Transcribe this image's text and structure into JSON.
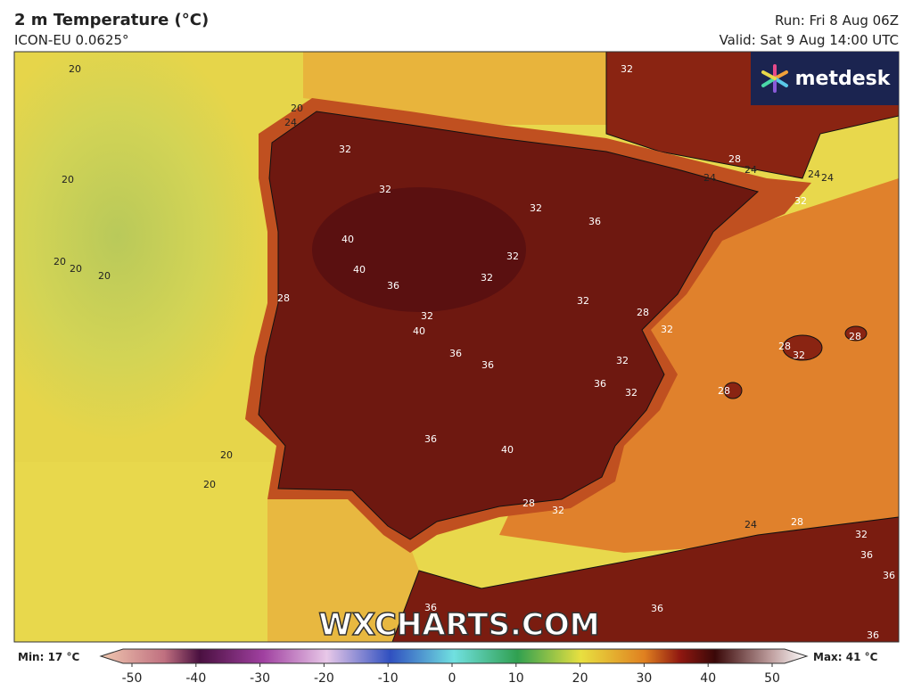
{
  "header": {
    "title": "2 m Temperature (°C)",
    "subtitle": "ICON-EU 0.0625°",
    "run": "Run: Fri 8 Aug 06Z",
    "valid": "Valid: Sat 9 Aug 14:00 UTC"
  },
  "logo": "metdesk",
  "watermark": "WXCHARTS.COM",
  "map": {
    "labels": [
      20,
      20,
      20,
      20,
      20,
      20,
      20,
      20,
      24,
      32,
      32,
      32,
      32,
      36,
      40,
      40,
      36,
      32,
      32,
      28,
      32,
      32,
      28,
      32,
      40,
      36,
      36,
      32,
      36,
      32,
      28,
      32,
      28,
      28,
      36,
      40,
      28,
      32,
      24,
      28,
      32,
      36,
      36,
      36,
      36,
      36,
      28,
      24,
      24,
      24,
      24,
      32
    ]
  },
  "legend": {
    "min": "Min: 17 °C",
    "max": "Max: 41 °C",
    "ticks": [
      -50,
      -40,
      -30,
      -20,
      -10,
      0,
      10,
      20,
      30,
      40,
      50
    ]
  }
}
